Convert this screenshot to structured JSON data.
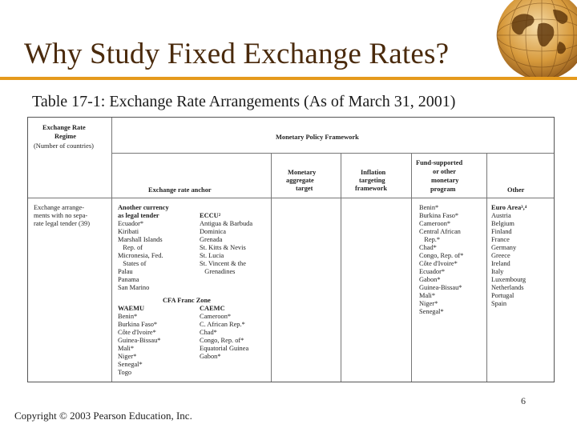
{
  "slide": {
    "title": "Why Study Fixed Exchange Rates?",
    "subtitle_prefix": "Table 17-1",
    "subtitle_rest": ": Exchange Rate Arrangements (As of March 31, 2001)",
    "footer": "Copyright © 2003 Pearson Education, Inc.",
    "page_number": "6",
    "accent_color": "#e59a1d",
    "title_color": "#4a2a0c"
  },
  "table": {
    "col1_header": [
      "Exchange Rate",
      "Regime",
      "(Number of countries)"
    ],
    "framework_header": "Monetary Policy Framework",
    "anchor_header": "Exchange rate anchor",
    "monetary_header": [
      "Monetary",
      "aggregate",
      "target"
    ],
    "inflation_header": [
      "Inflation",
      "targeting",
      "framework"
    ],
    "fund_header": [
      "Fund-supported",
      "or other",
      "monetary",
      "program"
    ],
    "other_header": "Other",
    "regime_label": [
      "Exchange arrange-",
      "ments with no sepa-",
      "rate legal tender (39)"
    ],
    "another_currency_title": [
      "Another currency",
      "as legal tender"
    ],
    "another_currency_list": [
      "Ecuador*",
      "Kiribati",
      "Marshall Islands",
      "   Rep. of",
      "Micronesia, Fed.",
      "   States of",
      "Palau",
      "Panama",
      "San Marino"
    ],
    "eccu_title": "ECCU²",
    "eccu_list": [
      "Antigua & Barbuda",
      "Dominica",
      "Grenada",
      "St. Kitts & Nevis",
      "St. Lucia",
      "St. Vincent & the",
      "   Grenadines"
    ],
    "cfa_title": "CFA Franc Zone",
    "waemu_title": "WAEMU",
    "waemu_list": [
      "Benin*",
      "Burkina Faso*",
      "Côte d'Ivoire*",
      "Guinea-Bissau*",
      "Mali*",
      "Niger*",
      "Senegal*",
      "Togo"
    ],
    "caemc_title": "CAEMC",
    "caemc_list": [
      "Cameroon*",
      "C. African Rep.*",
      "Chad*",
      "Congo, Rep. of*",
      "Equatorial Guinea",
      "Gabon*"
    ],
    "fund_list": [
      "Benin*",
      "Burkina Faso*",
      "Cameroon*",
      "Central African",
      "   Rep.*",
      "Chad*",
      "Congo, Rep. of*",
      "Côte d'Ivoire*",
      "Ecuador*",
      "Gabon*",
      "Guinea-Bissau*",
      "Mali*",
      "Niger*",
      "Senegal*"
    ],
    "other_title": "Euro Area³,⁴",
    "other_list": [
      "Austria",
      "Belgium",
      "Finland",
      "France",
      "Germany",
      "Greece",
      "Ireland",
      "Italy",
      "Luxembourg",
      "Netherlands",
      "Portugal",
      "Spain"
    ]
  }
}
